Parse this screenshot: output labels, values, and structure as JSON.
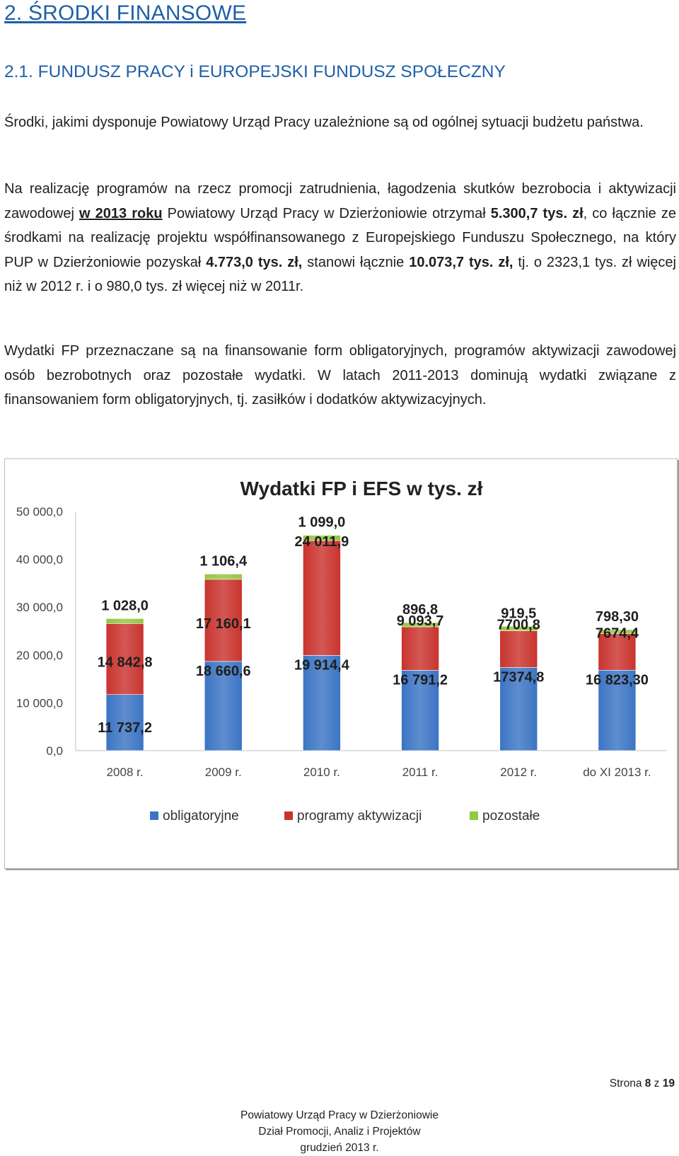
{
  "heading1": "2. ŚRODKI FINANSOWE",
  "heading2": "2.1. FUNDUSZ PRACY i EUROPEJSKI FUNDUSZ SPOŁECZNY",
  "para1": "Środki, jakimi dysponuje Powiatowy Urząd Pracy uzależnione są od ogólnej sytuacji budżetu państwa.",
  "para2": {
    "t1": "Na realizację programów na rzecz promocji zatrudnienia, łagodzenia skutków bezrobocia i aktywizacji zawodowej ",
    "t2": "w 2013 roku",
    "t3": " Powiatowy Urząd Pracy w Dzierżoniowie otrzymał ",
    "t4": "5.300,7 tys. zł",
    "t5": ", co łącznie ze środkami na realizację projektu współfinansowanego z Europejskiego Funduszu Społecznego, na który PUP w Dzierżoniowie pozyskał ",
    "t6": "4.773,0 tys. zł,",
    "t7": " stanowi łącznie ",
    "t8": "10.073,7 tys. zł,",
    "t9": " tj. o 2323,1 tys. zł więcej niż w 2012 r. i o 980,0 tys. zł więcej niż w 2011r."
  },
  "para3": "Wydatki FP przeznaczane są na finansowanie form obligatoryjnych, programów aktywizacji zawodowej osób bezrobotnych oraz pozostałe wydatki. W latach 2011-2013 dominują wydatki związane z finansowaniem form obligatoryjnych, tj. zasiłków i dodatków aktywizacyjnych.",
  "chart_data": {
    "type": "bar",
    "stacked": true,
    "title": "Wydatki FP i EFS w tys. zł",
    "categories": [
      "2008 r.",
      "2009 r.",
      "2010 r.",
      "2011 r.",
      "2012 r.",
      "do XI 2013 r."
    ],
    "yticks": [
      "0,0",
      "10 000,0",
      "20 000,0",
      "30 000,0",
      "40 000,0",
      "50 000,0"
    ],
    "ylim": [
      0,
      50000
    ],
    "grid": false,
    "legend_position": "bottom",
    "series": [
      {
        "name": "obligatoryjne",
        "color": "#3b74c4",
        "values": [
          11737.2,
          18660.6,
          19914.4,
          16791.2,
          17374.8,
          16823.3
        ],
        "labels": [
          "11 737,2",
          "18 660,6",
          "19 914,4",
          "16 791,2",
          "17374,8",
          "16 823,30"
        ]
      },
      {
        "name": "programy aktywizacji",
        "color": "#c9332e",
        "values": [
          14842.8,
          17160.1,
          24011.9,
          9093.7,
          7700.8,
          7674.4
        ],
        "labels": [
          "14 842,8",
          "17 160,1",
          "24 011,9",
          "9 093,7",
          "7700,8",
          "7674,4"
        ]
      },
      {
        "name": "pozostałe",
        "color": "#92c83e",
        "values": [
          1028.0,
          1106.4,
          1099.0,
          896.8,
          919.5,
          798.3
        ],
        "labels": [
          "1 028,0",
          "1 106,4",
          "1 099,0",
          "896,8",
          "919,5",
          "798,30"
        ]
      }
    ]
  },
  "page_number": {
    "prefix": "Strona ",
    "current": "8",
    "sep": " z ",
    "total": "19"
  },
  "footer": {
    "line1": "Powiatowy Urząd Pracy w Dzierżoniowie",
    "line2": "Dział Promocji, Analiz i Projektów",
    "line3": "grudzień 2013 r."
  }
}
